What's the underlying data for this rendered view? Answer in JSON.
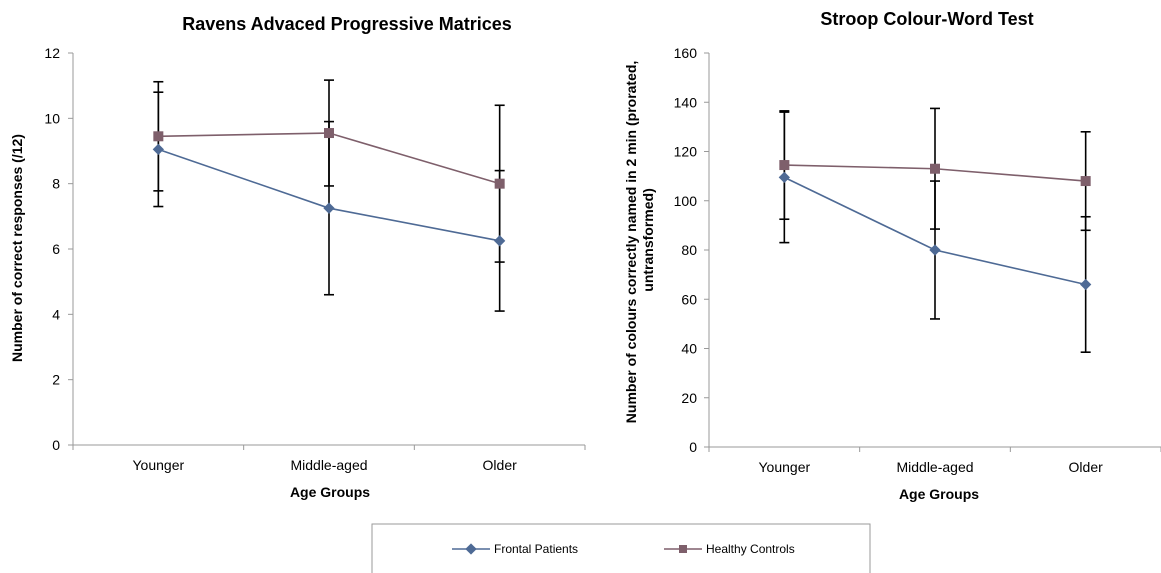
{
  "colors": {
    "frontal": "#4E6A95",
    "controls": "#7E5F6B",
    "axis": "#999999",
    "errorbar": "#000000"
  },
  "legend": {
    "items": [
      "Frontal Patients",
      "Healthy Controls"
    ],
    "placement": "bottom-center"
  },
  "chart_data": [
    {
      "type": "line",
      "title": "Ravens Advaced Progressive Matrices",
      "xlabel": "Age Groups",
      "ylabel": "Number of correct responses (/12)",
      "categories": [
        "Younger",
        "Middle-aged",
        "Older"
      ],
      "ylim": [
        0,
        12
      ],
      "yticks": [
        0,
        2,
        4,
        6,
        8,
        10,
        12
      ],
      "series": [
        {
          "name": "Frontal Patients",
          "values": [
            9.05,
            7.25,
            6.25
          ],
          "errors": [
            1.75,
            2.65,
            2.15
          ],
          "marker": "diamond"
        },
        {
          "name": "Healthy Controls",
          "values": [
            9.45,
            9.55,
            8.0
          ],
          "errors": [
            1.67,
            1.62,
            2.4
          ],
          "marker": "square"
        }
      ]
    },
    {
      "type": "line",
      "title": "Stroop Colour-Word Test",
      "xlabel": "Age Groups",
      "ylabel": "Number of colours correctly named in 2 min (prorated, untransformed)",
      "ylabel_lines": [
        "Number of colours correctly named in 2 min (prorated,",
        "untransformed)"
      ],
      "categories": [
        "Younger",
        "Middle-aged",
        "Older"
      ],
      "ylim": [
        0,
        160
      ],
      "yticks": [
        0,
        20,
        40,
        60,
        80,
        100,
        120,
        140,
        160
      ],
      "series": [
        {
          "name": "Frontal Patients",
          "values": [
            109.5,
            80,
            66
          ],
          "errors": [
            26.5,
            28,
            27.5
          ],
          "marker": "diamond"
        },
        {
          "name": "Healthy Controls",
          "values": [
            114.5,
            113,
            108
          ],
          "errors": [
            22,
            24.5,
            20
          ],
          "marker": "square"
        }
      ]
    }
  ]
}
